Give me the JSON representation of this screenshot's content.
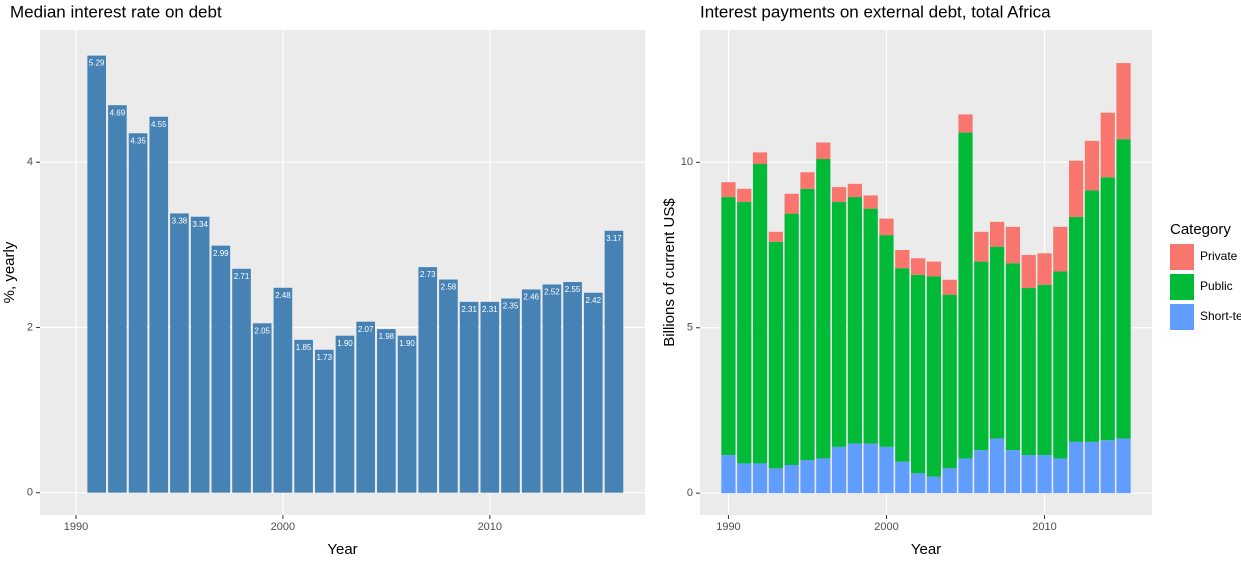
{
  "chart_data": [
    {
      "type": "bar",
      "title": "Median interest rate on debt",
      "x_label": "Year",
      "y_label": "%, yearly",
      "x": [
        1991,
        1992,
        1993,
        1994,
        1995,
        1996,
        1997,
        1998,
        1999,
        2000,
        2001,
        2002,
        2003,
        2004,
        2005,
        2006,
        2007,
        2008,
        2009,
        2010,
        2011,
        2012,
        2013,
        2014,
        2015,
        2016
      ],
      "values": [
        5.29,
        4.69,
        4.35,
        4.55,
        3.38,
        3.34,
        2.99,
        2.71,
        2.05,
        2.48,
        1.85,
        1.73,
        1.9,
        2.07,
        1.98,
        1.9,
        2.73,
        2.58,
        2.31,
        2.31,
        2.35,
        2.46,
        2.52,
        2.55,
        2.42,
        3.17
      ],
      "value_labels": [
        "5.29",
        "4.69",
        "4.35",
        "4.55",
        "3.38",
        "3.34",
        "2.99",
        "2.71",
        "2.05",
        "2.48",
        "1.85",
        "1.73",
        "1.90",
        "2.07",
        "1.98",
        "1.90",
        "2.73",
        "2.58",
        "2.31",
        "2.31",
        "2.35",
        "2.46",
        "2.52",
        "2.55",
        "2.42",
        "3.17"
      ],
      "color": "#4682B4",
      "xlim": [
        1988.26,
        2017.5
      ],
      "xticks": [
        1990,
        2000,
        2010
      ],
      "ylim": [
        -0.27,
        5.6
      ],
      "yticks": [
        0,
        2,
        4
      ],
      "grid": true
    },
    {
      "type": "bar",
      "stacked": true,
      "title": "Interest payments on external debt, total Africa",
      "x_label": "Year",
      "y_label": "Billions of current US$",
      "legend_title": "Category",
      "legend": "right",
      "x": [
        1990,
        1991,
        1992,
        1993,
        1994,
        1995,
        1996,
        1997,
        1998,
        1999,
        2000,
        2001,
        2002,
        2003,
        2004,
        2005,
        2006,
        2007,
        2008,
        2009,
        2010,
        2011,
        2012,
        2013,
        2014,
        2015
      ],
      "series": [
        {
          "name": "Private",
          "color": "#F8766D",
          "values": [
            0.45,
            0.4,
            0.35,
            0.3,
            0.6,
            0.5,
            0.5,
            0.45,
            0.4,
            0.4,
            0.5,
            0.55,
            0.5,
            0.45,
            0.45,
            0.55,
            0.9,
            0.75,
            1.1,
            1.0,
            0.95,
            1.35,
            1.7,
            1.5,
            1.95,
            2.3
          ]
        },
        {
          "name": "Public",
          "color": "#00BA38",
          "values": [
            7.8,
            7.9,
            9.05,
            6.85,
            7.6,
            8.2,
            9.05,
            7.4,
            7.45,
            7.1,
            6.4,
            5.85,
            6.0,
            6.05,
            5.25,
            9.85,
            5.7,
            5.8,
            5.65,
            5.05,
            5.15,
            5.65,
            6.8,
            7.6,
            7.95,
            9.05
          ]
        },
        {
          "name": "Short-term",
          "color": "#619CFF",
          "values": [
            1.15,
            0.9,
            0.9,
            0.75,
            0.85,
            1.0,
            1.05,
            1.4,
            1.5,
            1.5,
            1.4,
            0.95,
            0.6,
            0.5,
            0.75,
            1.05,
            1.3,
            1.65,
            1.3,
            1.15,
            1.15,
            1.05,
            1.55,
            1.55,
            1.6,
            1.65
          ]
        }
      ],
      "xlim": [
        1988.2,
        2016.8
      ],
      "xticks": [
        1990,
        2000,
        2010
      ],
      "ylim": [
        -0.66,
        14.0
      ],
      "yticks": [
        0,
        5,
        10
      ],
      "grid": true
    }
  ]
}
